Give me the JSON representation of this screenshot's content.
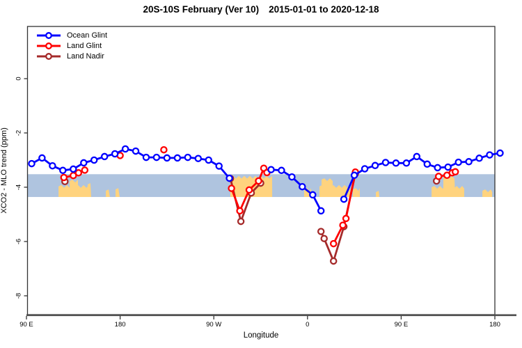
{
  "title": {
    "region_line": "20S-10S February (Ver 10)",
    "date_range": "2015-01-01 to 2020-12-18"
  },
  "chart_data": {
    "type": "line",
    "title": "20S-10S February (Ver 10)  2015-01-01 to 2020-12-18",
    "xlabel": "Longitude",
    "ylabel": "XCO2 - MLO trend (ppm)",
    "x_axis": {
      "ticks": [
        {
          "pos": 90,
          "label": "90 E"
        },
        {
          "pos": 180,
          "label": "180"
        },
        {
          "pos": 270,
          "label": "90 W"
        },
        {
          "pos": 360,
          "label": "0"
        },
        {
          "pos": 450,
          "label": "90 E"
        },
        {
          "pos": 540,
          "label": "180"
        }
      ],
      "range": [
        90,
        540
      ]
    },
    "y_axis": {
      "ticks": [
        {
          "pos": 0,
          "label": "0"
        },
        {
          "pos": -2,
          "label": "-2"
        },
        {
          "pos": -4,
          "label": "-4"
        },
        {
          "pos": -6,
          "label": "-6"
        },
        {
          "pos": -8,
          "label": "-8"
        }
      ],
      "range": [
        -8.8,
        1.9
      ]
    },
    "map_band": {
      "comment_color_ocean": "#AFC4DF",
      "comment_color_land": "#FFD37E",
      "val_top": -3.52,
      "val_bottom": -4.36,
      "land_patches": [
        {
          "d1": 120.8,
          "d2": 150.9,
          "val_top": -3.92
        },
        {
          "d1": 131.5,
          "d2": 139.5,
          "val_top": -3.72
        },
        {
          "d1": 148.8,
          "d2": 152.2,
          "val_top": -3.85
        },
        {
          "d1": 166.2,
          "d2": 170.2,
          "val_top": -4.08
        },
        {
          "d1": 175.6,
          "d2": 179.6,
          "val_top": -4.03
        },
        {
          "d1": 285.9,
          "d2": 326.1,
          "val_top": -3.58
        },
        {
          "d1": 356.8,
          "d2": 363.5,
          "val_top": -4.03
        },
        {
          "d1": 371.5,
          "d2": 400.9,
          "val_top": -3.92
        },
        {
          "d1": 373.5,
          "d2": 384.2,
          "val_top": -3.67
        },
        {
          "d1": 403.6,
          "d2": 410.3,
          "val_top": -4.03
        },
        {
          "d1": 425.7,
          "d2": 429.0,
          "val_top": -4.13
        },
        {
          "d1": 479.2,
          "d2": 510.6,
          "val_top": -3.95
        },
        {
          "d1": 490.5,
          "d2": 501.9,
          "val_top": -3.58
        },
        {
          "d1": 528.0,
          "d2": 537.4,
          "val_top": -4.08
        }
      ]
    },
    "series": [
      {
        "name": "Land Nadir",
        "color": "#A52A2A",
        "points": [
          [
            127,
            -3.79
          ],
          [
            286,
            -3.68
          ],
          [
            296,
            -5.26
          ],
          [
            306,
            -4.21
          ],
          [
            315,
            -3.85
          ],
          [
            373,
            -5.63
          ],
          [
            376,
            -5.89
          ],
          [
            385,
            -6.72
          ],
          [
            395,
            -5.45
          ],
          [
            406,
            -3.5
          ],
          [
            484,
            -3.77
          ]
        ]
      },
      {
        "name": "Land Glint",
        "color": "#FF0000",
        "points": [
          [
            126,
            -3.64
          ],
          [
            135,
            -3.57
          ],
          [
            140,
            -3.47
          ],
          [
            146,
            -3.37
          ],
          [
            180,
            -2.83
          ],
          [
            222,
            -2.62
          ],
          [
            287,
            -4.04
          ],
          [
            295,
            -4.87
          ],
          [
            304,
            -4.1
          ],
          [
            313,
            -3.77
          ],
          [
            318,
            -3.3
          ],
          [
            321,
            -3.46
          ],
          [
            385,
            -6.08
          ],
          [
            394,
            -5.4
          ],
          [
            397,
            -5.15
          ],
          [
            406,
            -3.44
          ],
          [
            486,
            -3.6
          ],
          [
            494,
            -3.56
          ],
          [
            499,
            -3.47
          ],
          [
            502,
            -3.43
          ]
        ]
      },
      {
        "name": "Ocean Glint",
        "color": "#0000FF",
        "points": [
          [
            95,
            -3.13
          ],
          [
            105,
            -2.92
          ],
          [
            115,
            -3.21
          ],
          [
            125,
            -3.38
          ],
          [
            135,
            -3.33
          ],
          [
            145,
            -3.1
          ],
          [
            155,
            -3.0
          ],
          [
            165,
            -2.87
          ],
          [
            175,
            -2.77
          ],
          [
            185,
            -2.59
          ],
          [
            195,
            -2.67
          ],
          [
            205,
            -2.9
          ],
          [
            215,
            -2.9
          ],
          [
            225,
            -2.92
          ],
          [
            235,
            -2.92
          ],
          [
            245,
            -2.9
          ],
          [
            255,
            -2.94
          ],
          [
            265,
            -3.0
          ],
          [
            275,
            -3.22
          ],
          [
            285,
            -3.67
          ],
          [
            325,
            -3.35
          ],
          [
            335,
            -3.38
          ],
          [
            345,
            -3.62
          ],
          [
            355,
            -3.98
          ],
          [
            365,
            -4.28
          ],
          [
            373,
            -4.87
          ],
          [
            395,
            -4.44
          ],
          [
            405,
            -3.56
          ],
          [
            415,
            -3.32
          ],
          [
            425,
            -3.2
          ],
          [
            435,
            -3.09
          ],
          [
            445,
            -3.11
          ],
          [
            455,
            -3.11
          ],
          [
            465,
            -2.87
          ],
          [
            475,
            -3.15
          ],
          [
            485,
            -3.28
          ],
          [
            495,
            -3.26
          ],
          [
            505,
            -3.08
          ],
          [
            515,
            -3.06
          ],
          [
            525,
            -2.93
          ],
          [
            535,
            -2.81
          ],
          [
            545,
            -2.74
          ]
        ]
      }
    ],
    "legend_position": "top-left",
    "grid": false,
    "gap_threshold_deg": 12
  }
}
